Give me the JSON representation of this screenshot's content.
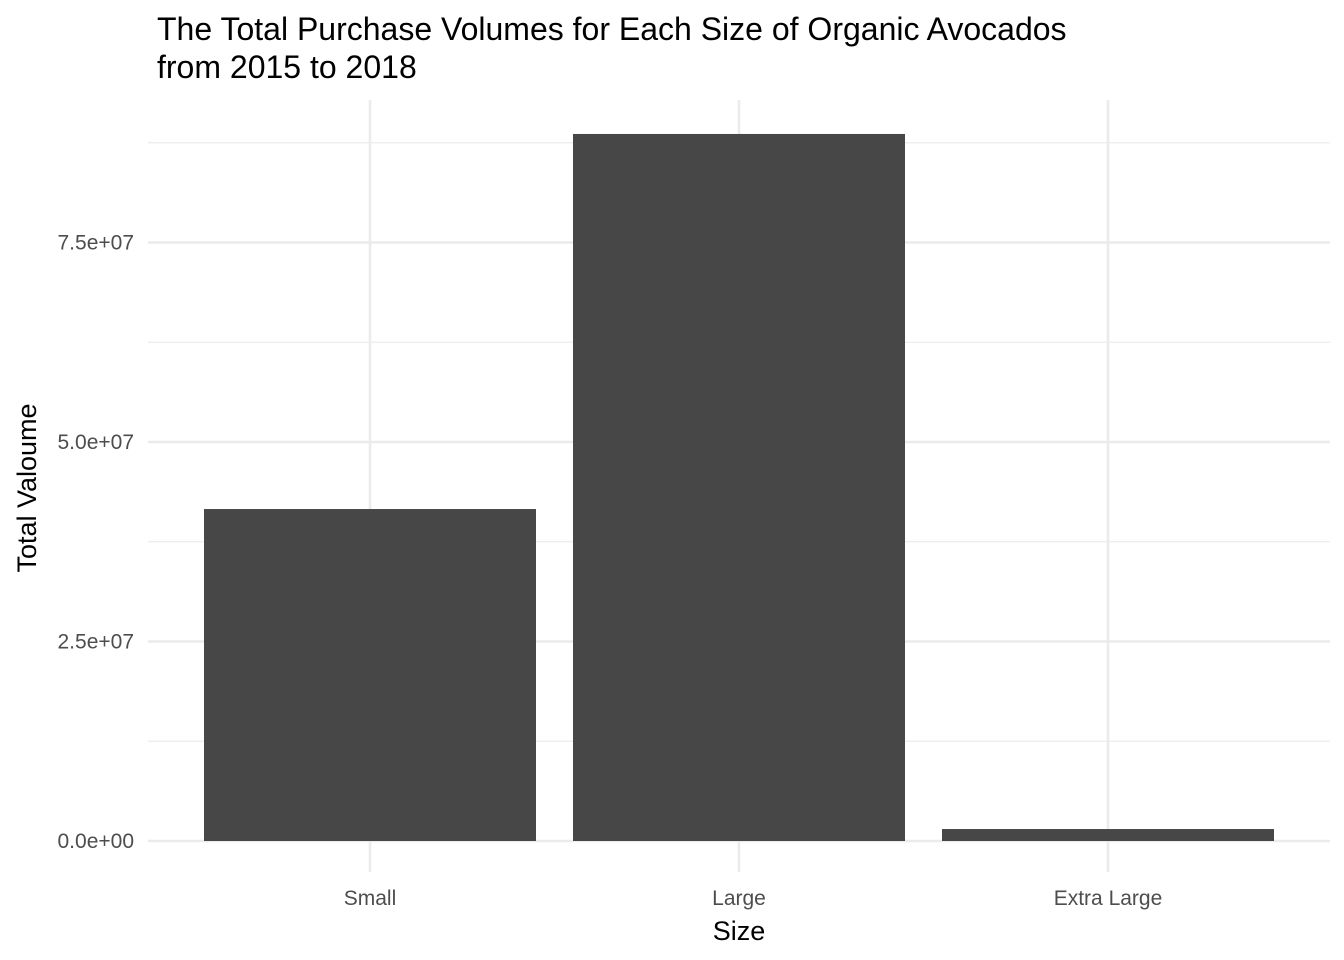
{
  "chart_data": {
    "type": "bar",
    "title": "The Total Purchase Volumes for Each Size of Organic Avocados from 2015 to 2018",
    "title_lines": [
      "The Total Purchase Volumes for Each Size of Organic Avocados",
      "from 2015 to 2018"
    ],
    "xlabel": "Size",
    "ylabel": "Total Valoume",
    "categories": [
      "Small",
      "Large",
      "Extra Large"
    ],
    "values": [
      41600000,
      88600000,
      1500000
    ],
    "ylim": [
      0,
      92500000
    ],
    "y_ticks": [
      0,
      25000000,
      50000000,
      75000000
    ],
    "y_tick_labels": [
      "0.0e+00",
      "2.5e+07",
      "5.0e+07",
      "7.5e+07"
    ],
    "y_minor_ticks": [
      12500000,
      37500000,
      62500000,
      87500000
    ],
    "grid": true,
    "legend": "none",
    "bar_color": "#474747",
    "grid_color": "#ebebeb",
    "background": "#ffffff"
  }
}
